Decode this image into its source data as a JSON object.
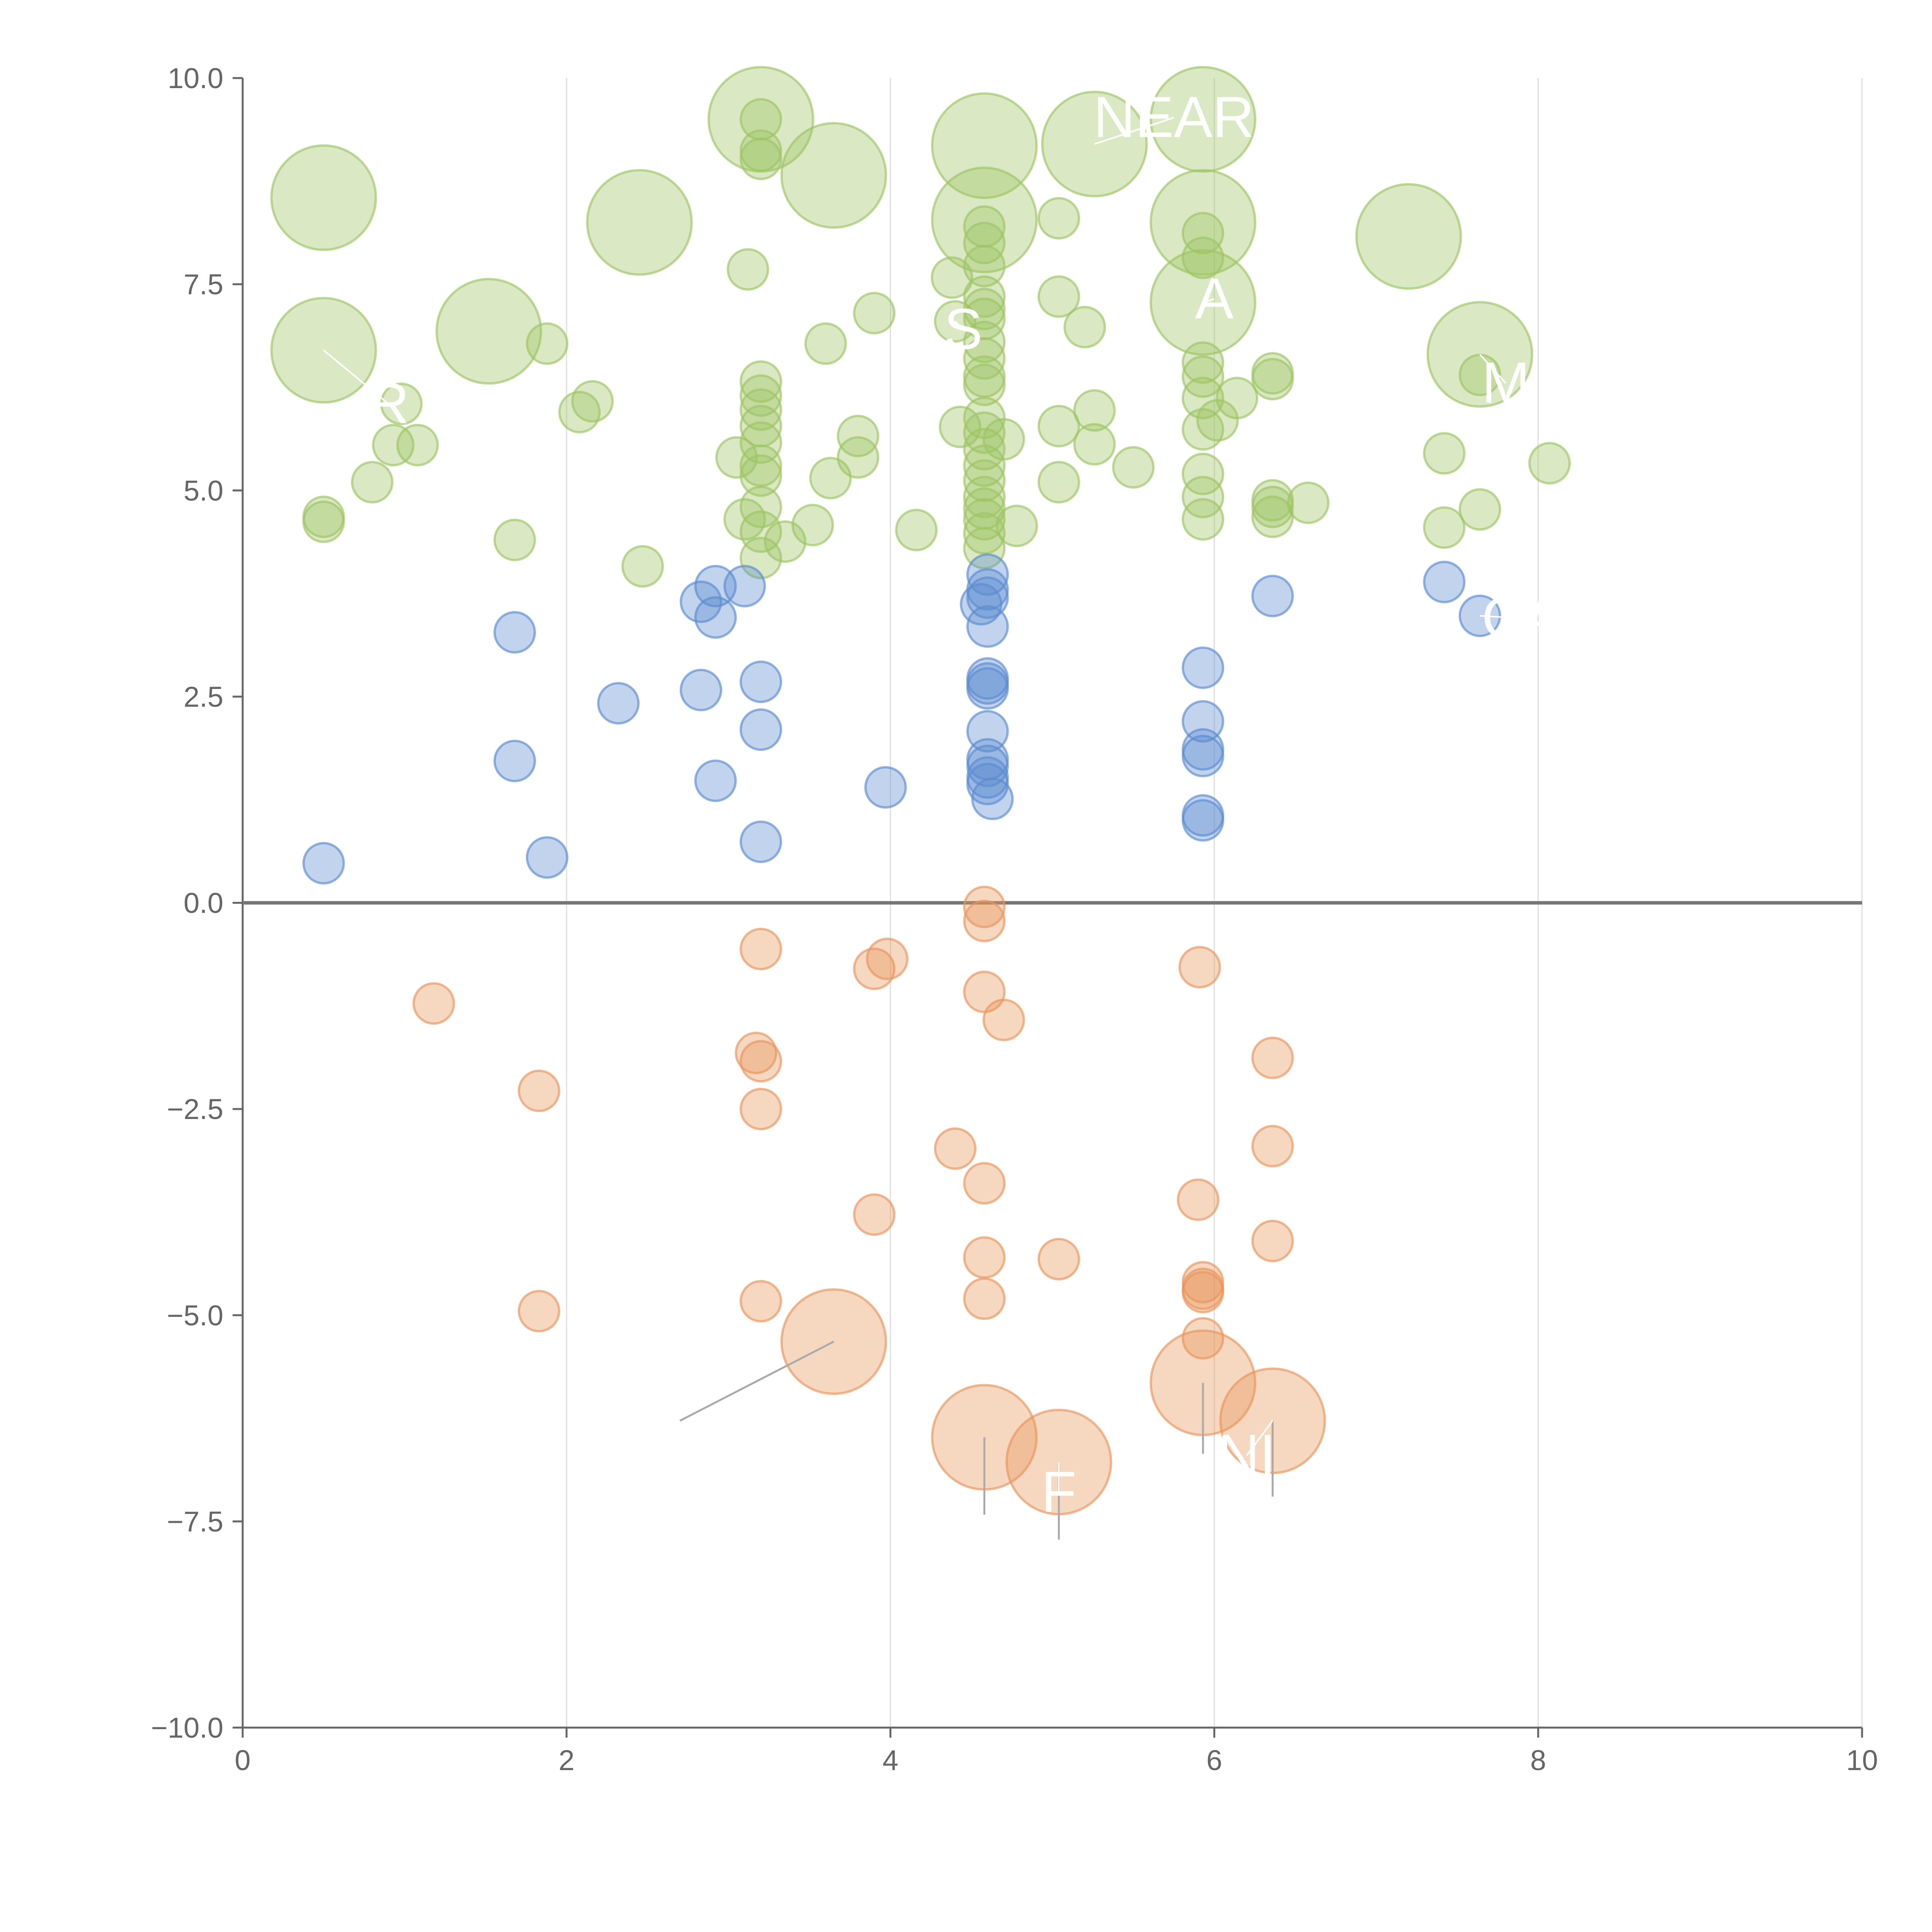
{
  "chart_data": {
    "type": "scatter",
    "title": "",
    "xlabel": "",
    "ylabel": "",
    "xlim": [
      0,
      10
    ],
    "ylim": [
      -10,
      10
    ],
    "x_ticks": [
      0,
      2,
      4,
      6,
      8,
      10
    ],
    "y_ticks": [
      -10.0,
      -7.5,
      -5.0,
      -2.5,
      0.0,
      2.5,
      5.0,
      7.5,
      10.0
    ],
    "x_tick_labels": [
      "0",
      "2",
      "4",
      "6",
      "8",
      "10"
    ],
    "y_tick_labels": [
      "−10.0",
      "−7.5",
      "−5.0",
      "−2.5",
      "0.0",
      "2.5",
      "5.0",
      "7.5",
      "10.0"
    ],
    "grid": {
      "vertical": true,
      "horizontal": false
    },
    "zero_line": true,
    "colors": {
      "green": "#9dc463",
      "blue": "#5b8ccf",
      "orange": "#e8955a",
      "axis": "#666666",
      "grid": "#dddddd"
    },
    "series": [
      {
        "name": "green",
        "color": "#9dc463",
        "points": [
          [
            0.5,
            8.55,
            1
          ],
          [
            0.5,
            6.7,
            1
          ],
          [
            0.5,
            4.68,
            0
          ],
          [
            0.5,
            4.62,
            0
          ],
          [
            0.8,
            5.1,
            0
          ],
          [
            0.93,
            5.55,
            0
          ],
          [
            0.98,
            6.05,
            0
          ],
          [
            1.08,
            5.55,
            0
          ],
          [
            1.52,
            6.93,
            1
          ],
          [
            1.68,
            4.4,
            0
          ],
          [
            1.88,
            6.78,
            0
          ],
          [
            2.08,
            5.95,
            0
          ],
          [
            2.16,
            6.08,
            0
          ],
          [
            2.45,
            8.25,
            1
          ],
          [
            2.47,
            4.08,
            0
          ],
          [
            3.05,
            5.4,
            0
          ],
          [
            3.1,
            4.65,
            0
          ],
          [
            3.12,
            7.68,
            0
          ],
          [
            3.2,
            9.5,
            1
          ],
          [
            3.2,
            9.5,
            0
          ],
          [
            3.2,
            9.12,
            0
          ],
          [
            3.2,
            9.02,
            0
          ],
          [
            3.2,
            6.32,
            0
          ],
          [
            3.2,
            6.15,
            0
          ],
          [
            3.2,
            5.98,
            0
          ],
          [
            3.2,
            5.78,
            0
          ],
          [
            3.2,
            5.58,
            0
          ],
          [
            3.2,
            5.3,
            0
          ],
          [
            3.2,
            5.18,
            0
          ],
          [
            3.2,
            4.8,
            0
          ],
          [
            3.2,
            4.5,
            0
          ],
          [
            3.2,
            4.18,
            0
          ],
          [
            3.35,
            4.38,
            0
          ],
          [
            3.52,
            4.58,
            0
          ],
          [
            3.6,
            6.78,
            0
          ],
          [
            3.63,
            5.15,
            0
          ],
          [
            3.65,
            8.82,
            1
          ],
          [
            3.8,
            5.4,
            0
          ],
          [
            3.8,
            5.66,
            0
          ],
          [
            3.9,
            7.15,
            0
          ],
          [
            4.16,
            4.52,
            0
          ],
          [
            4.38,
            7.58,
            0
          ],
          [
            4.4,
            7.05,
            0
          ],
          [
            4.43,
            5.77,
            0
          ],
          [
            4.58,
            9.18,
            1
          ],
          [
            4.58,
            8.28,
            1
          ],
          [
            4.58,
            8.2,
            0
          ],
          [
            4.58,
            8.0,
            0
          ],
          [
            4.58,
            7.72,
            0
          ],
          [
            4.58,
            7.35,
            0
          ],
          [
            4.58,
            7.2,
            0
          ],
          [
            4.58,
            7.08,
            0
          ],
          [
            4.58,
            6.8,
            0
          ],
          [
            4.58,
            6.6,
            0
          ],
          [
            4.58,
            6.38,
            0
          ],
          [
            4.58,
            6.28,
            0
          ],
          [
            4.58,
            5.88,
            0
          ],
          [
            4.58,
            5.7,
            0
          ],
          [
            4.58,
            5.5,
            0
          ],
          [
            4.58,
            5.3,
            0
          ],
          [
            4.58,
            5.12,
            0
          ],
          [
            4.58,
            4.92,
            0
          ],
          [
            4.58,
            4.78,
            0
          ],
          [
            4.58,
            4.65,
            0
          ],
          [
            4.58,
            4.48,
            0
          ],
          [
            4.58,
            4.3,
            0
          ],
          [
            4.7,
            5.62,
            0
          ],
          [
            4.78,
            4.57,
            0
          ],
          [
            5.04,
            8.3,
            0
          ],
          [
            5.04,
            7.35,
            0
          ],
          [
            5.04,
            5.78,
            0
          ],
          [
            5.04,
            5.1,
            0
          ],
          [
            5.2,
            6.98,
            0
          ],
          [
            5.26,
            9.2,
            1
          ],
          [
            5.26,
            5.97,
            0
          ],
          [
            5.26,
            5.56,
            0
          ],
          [
            5.5,
            5.28,
            0
          ],
          [
            5.93,
            9.5,
            1
          ],
          [
            5.93,
            8.25,
            1
          ],
          [
            5.93,
            8.12,
            0
          ],
          [
            5.93,
            7.82,
            0
          ],
          [
            5.93,
            7.28,
            1
          ],
          [
            5.93,
            6.55,
            0
          ],
          [
            5.93,
            6.38,
            0
          ],
          [
            5.93,
            6.12,
            0
          ],
          [
            5.93,
            5.74,
            0
          ],
          [
            5.93,
            5.2,
            0
          ],
          [
            5.93,
            4.92,
            0
          ],
          [
            5.93,
            4.65,
            0
          ],
          [
            6.02,
            5.85,
            0
          ],
          [
            6.14,
            6.12,
            0
          ],
          [
            6.36,
            6.42,
            0
          ],
          [
            6.36,
            6.35,
            0
          ],
          [
            6.36,
            4.88,
            0
          ],
          [
            6.36,
            4.8,
            0
          ],
          [
            6.36,
            4.68,
            0
          ],
          [
            6.58,
            4.85,
            0
          ],
          [
            7.2,
            8.08,
            1
          ],
          [
            7.42,
            5.45,
            0
          ],
          [
            7.42,
            4.55,
            0
          ],
          [
            7.64,
            6.65,
            1
          ],
          [
            7.64,
            6.4,
            0
          ],
          [
            7.64,
            4.77,
            0
          ],
          [
            8.07,
            5.33,
            0
          ]
        ]
      },
      {
        "name": "blue",
        "color": "#5b8ccf",
        "points": [
          [
            0.5,
            0.48,
            0
          ],
          [
            1.68,
            3.28,
            0
          ],
          [
            1.68,
            1.72,
            0
          ],
          [
            1.88,
            0.55,
            0
          ],
          [
            2.32,
            2.42,
            0
          ],
          [
            2.83,
            3.65,
            0
          ],
          [
            2.83,
            2.58,
            0
          ],
          [
            2.92,
            3.84,
            0
          ],
          [
            2.92,
            3.46,
            0
          ],
          [
            2.92,
            1.48,
            0
          ],
          [
            3.1,
            3.84,
            0
          ],
          [
            3.2,
            2.68,
            0
          ],
          [
            3.2,
            2.1,
            0
          ],
          [
            3.2,
            0.74,
            0
          ],
          [
            3.97,
            1.4,
            0
          ],
          [
            4.56,
            3.62,
            0
          ],
          [
            4.6,
            3.98,
            0
          ],
          [
            4.6,
            3.8,
            0
          ],
          [
            4.6,
            3.7,
            0
          ],
          [
            4.6,
            3.35,
            0
          ],
          [
            4.6,
            2.72,
            0
          ],
          [
            4.6,
            2.66,
            0
          ],
          [
            4.6,
            2.6,
            0
          ],
          [
            4.6,
            2.08,
            0
          ],
          [
            4.6,
            1.74,
            0
          ],
          [
            4.6,
            1.66,
            0
          ],
          [
            4.6,
            1.52,
            0
          ],
          [
            4.6,
            1.44,
            0
          ],
          [
            4.63,
            1.26,
            0
          ],
          [
            5.93,
            2.85,
            0
          ],
          [
            5.93,
            2.2,
            0
          ],
          [
            5.93,
            1.86,
            0
          ],
          [
            5.93,
            1.78,
            0
          ],
          [
            5.93,
            1.06,
            0
          ],
          [
            5.93,
            1.0,
            0
          ],
          [
            6.36,
            3.72,
            0
          ],
          [
            7.42,
            3.89,
            0
          ],
          [
            7.64,
            3.48,
            0
          ]
        ]
      },
      {
        "name": "orange",
        "color": "#e8955a",
        "points": [
          [
            1.18,
            -1.22,
            0
          ],
          [
            1.83,
            -2.28,
            0
          ],
          [
            1.83,
            -4.95,
            0
          ],
          [
            3.2,
            -0.56,
            0
          ],
          [
            3.17,
            -1.82,
            0
          ],
          [
            3.2,
            -1.92,
            0
          ],
          [
            3.2,
            -2.5,
            0
          ],
          [
            3.2,
            -4.83,
            0
          ],
          [
            3.65,
            -5.32,
            1
          ],
          [
            3.9,
            -0.8,
            0
          ],
          [
            3.98,
            -0.68,
            0
          ],
          [
            3.9,
            -3.78,
            0
          ],
          [
            4.4,
            -2.98,
            0
          ],
          [
            4.58,
            -0.05,
            0
          ],
          [
            4.58,
            -0.22,
            0
          ],
          [
            4.58,
            -1.08,
            0
          ],
          [
            4.7,
            -1.42,
            0
          ],
          [
            4.58,
            -3.4,
            0
          ],
          [
            4.58,
            -4.3,
            0
          ],
          [
            4.58,
            -4.8,
            0
          ],
          [
            4.58,
            -6.48,
            1
          ],
          [
            5.04,
            -4.32,
            0
          ],
          [
            5.04,
            -6.78,
            1
          ],
          [
            5.91,
            -0.78,
            0
          ],
          [
            5.9,
            -3.6,
            0
          ],
          [
            5.93,
            -4.6,
            0
          ],
          [
            5.93,
            -4.68,
            0
          ],
          [
            5.93,
            -4.72,
            0
          ],
          [
            5.93,
            -5.28,
            0
          ],
          [
            5.93,
            -5.82,
            1
          ],
          [
            6.36,
            -1.88,
            0
          ],
          [
            6.36,
            -2.95,
            0
          ],
          [
            6.36,
            -4.1,
            0
          ],
          [
            6.36,
            -6.28,
            1
          ]
        ]
      }
    ],
    "callouts": [
      {
        "text": "NEAR",
        "anchor": [
          5.26,
          9.2
        ],
        "label": [
          5.75,
          9.52
        ]
      },
      {
        "text": "A",
        "anchor": [
          5.93,
          7.28
        ],
        "label": [
          6.0,
          7.32
        ]
      },
      {
        "text": "S",
        "anchor": [
          4.4,
          7.05
        ],
        "label": [
          4.45,
          6.95
        ]
      },
      {
        "text": "R",
        "anchor": [
          0.5,
          6.7
        ],
        "label": [
          0.9,
          6.05
        ]
      },
      {
        "text": "M",
        "anchor": [
          7.64,
          6.65
        ],
        "label": [
          7.8,
          6.3
        ]
      },
      {
        "text": "CA",
        "anchor": [
          7.64,
          3.48
        ],
        "label": [
          7.9,
          3.45
        ]
      },
      {
        "text": "NI",
        "anchor": [
          6.36,
          -6.28
        ],
        "label": [
          6.2,
          -6.7
        ]
      },
      {
        "text": "F",
        "anchor": [
          5.04,
          -6.78
        ],
        "label": [
          5.04,
          -7.15
        ]
      }
    ],
    "leader_lines": [
      {
        "from": [
          3.65,
          -5.32
        ],
        "to": [
          2.7,
          -6.28
        ]
      },
      {
        "from": [
          4.58,
          -6.48
        ],
        "to": [
          4.58,
          -7.42
        ]
      },
      {
        "from": [
          5.04,
          -6.78
        ],
        "to": [
          5.04,
          -7.72
        ]
      },
      {
        "from": [
          5.93,
          -5.82
        ],
        "to": [
          5.93,
          -6.68
        ]
      },
      {
        "from": [
          6.36,
          -6.28
        ],
        "to": [
          6.36,
          -7.2
        ]
      }
    ]
  }
}
